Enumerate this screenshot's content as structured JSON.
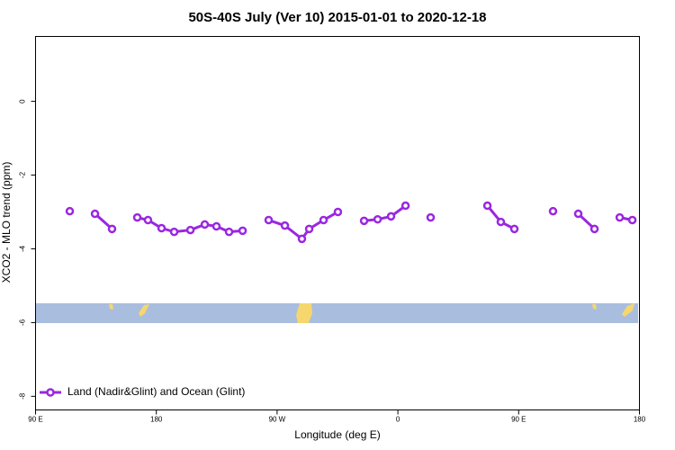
{
  "chart_data": {
    "type": "line",
    "title": "50S-40S July (Ver 10)   2015-01-01 to 2020-12-18",
    "x_label": "Longitude (deg E)",
    "y_label": "XCO2 - MLO trend (ppm)",
    "xlim": [
      90,
      540
    ],
    "xticks": [
      {
        "value": 90,
        "label": "90 E"
      },
      {
        "value": 180,
        "label": "180"
      },
      {
        "value": 270,
        "label": "90 W"
      },
      {
        "value": 360,
        "label": "0"
      },
      {
        "value": 450,
        "label": "90 E"
      },
      {
        "value": 540,
        "label": "180"
      }
    ],
    "ylim": [
      -8.37,
      1.76
    ],
    "yticks": [
      0,
      -2,
      -4,
      -6,
      -8
    ],
    "legend_position": "bottom-left",
    "series": [
      {
        "name": "Land (Nadir&Glint) and Ocean (Glint)",
        "color": "#9a27e0",
        "x": [
          115.5,
          null,
          134.3,
          147,
          null,
          165.8,
          173.8,
          183.9,
          193.3,
          205.4,
          216.1,
          224.8,
          234.2,
          244.3,
          null,
          263.7,
          275.8,
          288.5,
          293.9,
          304.6,
          315.3,
          null,
          334.8,
          344.9,
          354.9,
          365.7,
          null,
          384.4,
          null,
          426.7,
          436.7,
          446.8,
          null,
          475.6,
          null,
          494.4,
          506.5,
          null,
          525.3,
          534.7
        ],
        "values": [
          -2.98,
          null,
          -3.05,
          -3.46,
          null,
          -3.15,
          -3.22,
          -3.44,
          -3.54,
          -3.49,
          -3.34,
          -3.39,
          -3.54,
          -3.51,
          null,
          -3.22,
          -3.37,
          -3.73,
          -3.46,
          -3.22,
          -3.0,
          null,
          -3.24,
          -3.2,
          -3.12,
          -2.83,
          null,
          -3.15,
          null,
          -2.83,
          -3.27,
          -3.46,
          null,
          -2.98,
          null,
          -3.05,
          -3.46,
          null,
          -3.15,
          -3.22
        ]
      }
    ]
  }
}
